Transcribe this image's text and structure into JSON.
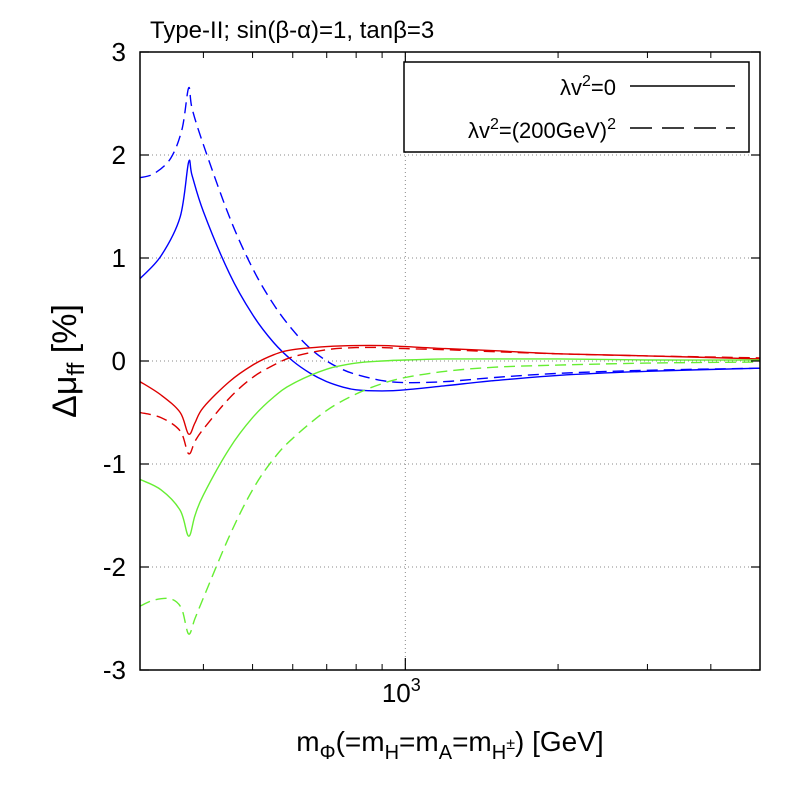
{
  "chart_data": {
    "type": "line",
    "title": "Type-II; sin(β-α)=1, tanβ=3",
    "ylabel": {
      "main": "Δμ",
      "sub": "ff",
      "unit": " [%]"
    },
    "xlabel": {
      "parts": [
        {
          "t": "m",
          "s": "n"
        },
        {
          "t": "Φ",
          "s": "sub"
        },
        {
          "t": "(=m",
          "s": "n"
        },
        {
          "t": "H",
          "s": "sub"
        },
        {
          "t": "=m",
          "s": "n"
        },
        {
          "t": "A",
          "s": "sub"
        },
        {
          "t": "=m",
          "s": "n"
        },
        {
          "t": "H",
          "s": "sub"
        },
        {
          "t": "±",
          "s": "subsup"
        },
        {
          "t": ") [GeV]",
          "s": "n"
        }
      ]
    },
    "xscale": "log",
    "xlim": [
      300,
      5000
    ],
    "ylim": [
      -3,
      3
    ],
    "ytick_values": [
      -3,
      -2,
      -1,
      0,
      1,
      2,
      3
    ],
    "ytick_labels": [
      "-3",
      "-2",
      "-1",
      "0",
      "1",
      "2",
      "3"
    ],
    "xtick": {
      "value": 1000,
      "base": "10",
      "exp": "3"
    },
    "grid": true,
    "legend": {
      "position": "top-right",
      "entries": [
        {
          "lead": "λv",
          "sup": "2",
          "tail": "=0",
          "tail_sup": "",
          "dash": "solid"
        },
        {
          "lead": "λv",
          "sup": "2",
          "tail": "=(200GeV)",
          "tail_sup": "2",
          "dash": "dashed"
        }
      ]
    },
    "series": [
      {
        "name": "blue, λv²=0",
        "color": "#0000ff",
        "dash": "solid",
        "x": [
          300,
          330,
          360,
          374,
          380,
          400,
          450,
          500,
          550,
          600,
          650,
          700,
          750,
          800,
          900,
          1000,
          1200,
          1500,
          2000,
          3000,
          5000
        ],
        "y": [
          0.8,
          1.02,
          1.4,
          1.93,
          1.8,
          1.45,
          0.85,
          0.45,
          0.18,
          0.0,
          -0.12,
          -0.2,
          -0.25,
          -0.28,
          -0.29,
          -0.28,
          -0.24,
          -0.19,
          -0.14,
          -0.1,
          -0.07
        ]
      },
      {
        "name": "blue, λv²=(200GeV)²",
        "color": "#0000ff",
        "dash": "dashed",
        "x": [
          300,
          320,
          345,
          363,
          374,
          380,
          400,
          450,
          500,
          550,
          600,
          650,
          700,
          750,
          800,
          900,
          1000,
          1200,
          1500,
          2000,
          3000,
          5000
        ],
        "y": [
          1.78,
          1.82,
          1.97,
          2.25,
          2.65,
          2.45,
          2.1,
          1.4,
          0.9,
          0.55,
          0.3,
          0.12,
          0.0,
          -0.08,
          -0.13,
          -0.19,
          -0.21,
          -0.2,
          -0.16,
          -0.12,
          -0.09,
          -0.07
        ]
      },
      {
        "name": "red, λv²=0",
        "color": "#dd0000",
        "dash": "solid",
        "x": [
          300,
          330,
          360,
          374,
          385,
          400,
          450,
          500,
          550,
          600,
          700,
          800,
          900,
          1000,
          1200,
          1500,
          2000,
          3000,
          5000
        ],
        "y": [
          -0.2,
          -0.33,
          -0.5,
          -0.71,
          -0.6,
          -0.45,
          -0.2,
          -0.04,
          0.06,
          0.11,
          0.14,
          0.15,
          0.15,
          0.14,
          0.12,
          0.1,
          0.07,
          0.05,
          0.02
        ]
      },
      {
        "name": "red, λv²=(200GeV)²",
        "color": "#dd0000",
        "dash": "dashed",
        "x": [
          300,
          330,
          360,
          374,
          385,
          400,
          450,
          500,
          550,
          600,
          700,
          800,
          900,
          1000,
          1200,
          1500,
          2000,
          3000,
          5000
        ],
        "y": [
          -0.5,
          -0.55,
          -0.68,
          -0.9,
          -0.78,
          -0.66,
          -0.36,
          -0.16,
          -0.04,
          0.04,
          0.11,
          0.13,
          0.13,
          0.12,
          0.11,
          0.09,
          0.07,
          0.05,
          0.03
        ]
      },
      {
        "name": "green, λv²=0",
        "color": "#66ee33",
        "dash": "solid",
        "x": [
          300,
          330,
          360,
          374,
          385,
          400,
          450,
          500,
          550,
          600,
          700,
          800,
          900,
          1000,
          1200,
          1500,
          2000,
          3000,
          5000
        ],
        "y": [
          -1.15,
          -1.25,
          -1.45,
          -1.7,
          -1.5,
          -1.3,
          -0.85,
          -0.55,
          -0.35,
          -0.22,
          -0.08,
          -0.02,
          0.0,
          0.01,
          0.02,
          0.02,
          0.02,
          0.01,
          0.01
        ]
      },
      {
        "name": "green, λv²=(200GeV)²",
        "color": "#66ee33",
        "dash": "dashed",
        "x": [
          300,
          320,
          345,
          362,
          374,
          385,
          400,
          450,
          500,
          550,
          600,
          700,
          800,
          900,
          1000,
          1200,
          1500,
          2000,
          3000,
          5000
        ],
        "y": [
          -2.38,
          -2.32,
          -2.31,
          -2.4,
          -2.65,
          -2.5,
          -2.3,
          -1.7,
          -1.25,
          -0.95,
          -0.75,
          -0.48,
          -0.32,
          -0.22,
          -0.16,
          -0.1,
          -0.06,
          -0.04,
          -0.02,
          -0.01
        ]
      }
    ]
  }
}
